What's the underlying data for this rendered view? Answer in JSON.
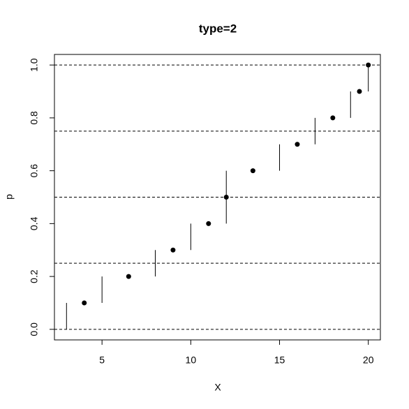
{
  "chart_data": {
    "type": "quantile-step",
    "title": "type=2",
    "x_label": "X",
    "y_label": "p",
    "points": {
      "x": [
        4,
        6.5,
        9,
        11,
        12,
        13.5,
        16,
        18,
        19.5,
        20
      ],
      "y": [
        0.1,
        0.2,
        0.3,
        0.4,
        0.5,
        0.6,
        0.7,
        0.8,
        0.9,
        1.0
      ],
      "color": "#000000"
    },
    "segments": [
      {
        "x": 3,
        "y0": 0,
        "y1": 0.1
      },
      {
        "x": 5,
        "y0": 0.1,
        "y1": 0.2
      },
      {
        "x": 8,
        "y0": 0.2,
        "y1": 0.3
      },
      {
        "x": 10,
        "y0": 0.3,
        "y1": 0.4
      },
      {
        "x": 12,
        "y0": 0.4,
        "y1": 0.6
      },
      {
        "x": 15,
        "y0": 0.6,
        "y1": 0.7
      },
      {
        "x": 17,
        "y0": 0.7,
        "y1": 0.8
      },
      {
        "x": 19,
        "y0": 0.8,
        "y1": 0.9
      },
      {
        "x": 20,
        "y0": 0.9,
        "y1": 1.0
      }
    ],
    "hlines": [
      0,
      0.25,
      0.5,
      0.75,
      1
    ],
    "xlim": [
      2.32,
      20.68
    ],
    "ylim": [
      -0.04,
      1.04
    ],
    "xticks": [
      5,
      10,
      15,
      20
    ],
    "yticks": [
      {
        "value": 0,
        "label": "0.0"
      },
      0.2,
      0.4,
      0.6,
      0.8,
      {
        "value": 1,
        "label": "1.0"
      }
    ]
  }
}
